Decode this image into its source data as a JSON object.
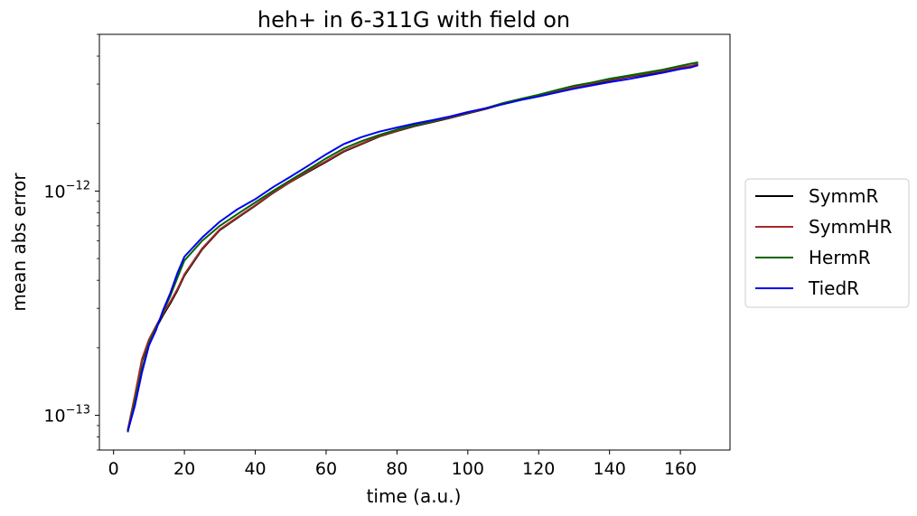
{
  "chart_data": {
    "type": "line",
    "title": "heh+ in 6-311G with field on",
    "xlabel": "time (a.u.)",
    "ylabel": "mean abs error",
    "xlim": [
      -4,
      174
    ],
    "ylim": [
      7e-14,
      5e-12
    ],
    "yscale": "log",
    "xticks": [
      0,
      20,
      40,
      60,
      80,
      100,
      120,
      140,
      160
    ],
    "yticks": [
      {
        "value": 1e-13,
        "base": "10",
        "exp": "−13"
      },
      {
        "value": 1e-12,
        "base": "10",
        "exp": "−12"
      }
    ],
    "grid": false,
    "legend_position": "outside-right",
    "series": [
      {
        "name": "SymmR",
        "color": "#000000",
        "x": [
          4,
          6,
          8,
          10,
          12,
          14,
          16,
          18,
          20,
          25,
          30,
          35,
          40,
          45,
          50,
          55,
          60,
          65,
          70,
          75,
          80,
          85,
          90,
          95,
          100,
          105,
          110,
          115,
          120,
          125,
          130,
          135,
          140,
          145,
          150,
          155,
          160,
          163,
          165
        ],
        "y": [
          8.5e-14,
          1.2e-13,
          1.75e-13,
          2.15e-13,
          2.45e-13,
          2.8e-13,
          3.15e-13,
          3.6e-13,
          4.2e-13,
          5.5e-13,
          6.7e-13,
          7.6e-13,
          8.6e-13,
          9.8e-13,
          1.1e-12,
          1.22e-12,
          1.35e-12,
          1.5e-12,
          1.62e-12,
          1.75e-12,
          1.85e-12,
          1.95e-12,
          2.03e-12,
          2.12e-12,
          2.22e-12,
          2.32e-12,
          2.45e-12,
          2.56e-12,
          2.66e-12,
          2.78e-12,
          2.9e-12,
          3e-12,
          3.12e-12,
          3.22e-12,
          3.32e-12,
          3.42e-12,
          3.55e-12,
          3.6e-12,
          3.68e-12
        ]
      },
      {
        "name": "SymmHR",
        "color": "#a52a2a",
        "x": [
          4,
          6,
          8,
          10,
          12,
          14,
          16,
          18,
          20,
          25,
          30,
          35,
          40,
          45,
          50,
          55,
          60,
          65,
          70,
          75,
          80,
          85,
          90,
          95,
          100,
          105,
          110,
          115,
          120,
          125,
          130,
          135,
          140,
          145,
          150,
          155,
          160,
          163,
          165
        ],
        "y": [
          8.6e-14,
          1.22e-13,
          1.78e-13,
          2.18e-13,
          2.5e-13,
          2.85e-13,
          3.2e-13,
          3.65e-13,
          4.25e-13,
          5.55e-13,
          6.75e-13,
          7.65e-13,
          8.65e-13,
          9.85e-13,
          1.1e-12,
          1.23e-12,
          1.36e-12,
          1.51e-12,
          1.63e-12,
          1.76e-12,
          1.86e-12,
          1.96e-12,
          2.04e-12,
          2.13e-12,
          2.23e-12,
          2.33e-12,
          2.46e-12,
          2.57e-12,
          2.67e-12,
          2.79e-12,
          2.91e-12,
          3.02e-12,
          3.14e-12,
          3.24e-12,
          3.34e-12,
          3.44e-12,
          3.57e-12,
          3.62e-12,
          3.7e-12
        ]
      },
      {
        "name": "HermR",
        "color": "#006400",
        "x": [
          4,
          6,
          8,
          10,
          12,
          14,
          16,
          18,
          20,
          25,
          30,
          35,
          40,
          45,
          50,
          55,
          60,
          65,
          70,
          75,
          80,
          85,
          90,
          95,
          100,
          105,
          110,
          115,
          120,
          125,
          130,
          135,
          140,
          145,
          150,
          155,
          160,
          163,
          165
        ],
        "y": [
          8.4e-14,
          1.15e-13,
          1.6e-13,
          2.1e-13,
          2.45e-13,
          2.9e-13,
          3.4e-13,
          4.1e-13,
          4.9e-13,
          6e-13,
          7e-13,
          7.9e-13,
          8.9e-13,
          1e-12,
          1.12e-12,
          1.25e-12,
          1.4e-12,
          1.55e-12,
          1.67e-12,
          1.78e-12,
          1.88e-12,
          1.97e-12,
          2.05e-12,
          2.14e-12,
          2.24e-12,
          2.34e-12,
          2.47e-12,
          2.58e-12,
          2.69e-12,
          2.82e-12,
          2.95e-12,
          3.05e-12,
          3.17e-12,
          3.27e-12,
          3.37e-12,
          3.48e-12,
          3.62e-12,
          3.7e-12,
          3.75e-12
        ]
      },
      {
        "name": "TiedR",
        "color": "#0000ee",
        "x": [
          4,
          6,
          8,
          10,
          12,
          14,
          16,
          18,
          20,
          25,
          30,
          35,
          40,
          45,
          50,
          55,
          60,
          65,
          70,
          75,
          80,
          85,
          90,
          95,
          100,
          105,
          110,
          115,
          120,
          125,
          130,
          135,
          140,
          145,
          150,
          155,
          160,
          163,
          165
        ],
        "y": [
          8.5e-14,
          1.1e-13,
          1.55e-13,
          2.05e-13,
          2.4e-13,
          2.95e-13,
          3.5e-13,
          4.3e-13,
          5.1e-13,
          6.2e-13,
          7.3e-13,
          8.3e-13,
          9.2e-13,
          1.04e-12,
          1.16e-12,
          1.3e-12,
          1.46e-12,
          1.62e-12,
          1.74e-12,
          1.84e-12,
          1.92e-12,
          2e-12,
          2.07e-12,
          2.15e-12,
          2.25e-12,
          2.34e-12,
          2.44e-12,
          2.55e-12,
          2.64e-12,
          2.75e-12,
          2.86e-12,
          2.96e-12,
          3.06e-12,
          3.15e-12,
          3.26e-12,
          3.37e-12,
          3.5e-12,
          3.56e-12,
          3.64e-12
        ]
      }
    ]
  }
}
